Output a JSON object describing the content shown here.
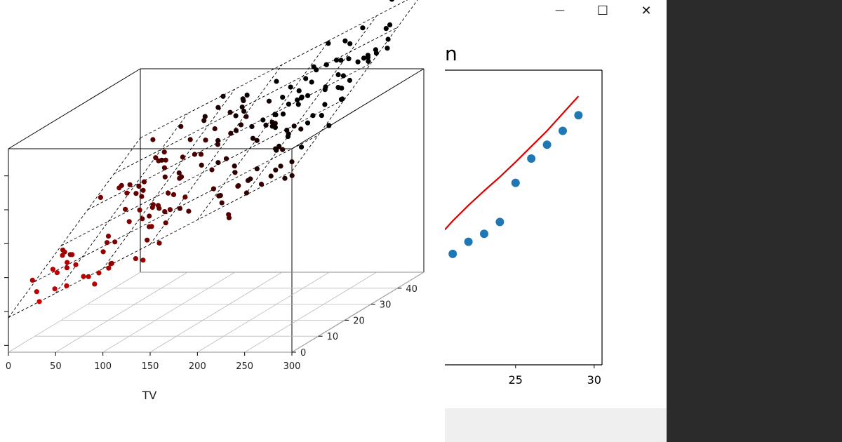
{
  "window": {
    "minimize_glyph": "—",
    "maximize_glyph": "☐",
    "close_glyph": "✕"
  },
  "right_panel": {
    "title_fragment": "n"
  },
  "chart_data": [
    {
      "type": "scatter3d",
      "title": "",
      "xlabel": "TV",
      "ylabel": "",
      "zlabel": "",
      "x_ticks": [
        "0",
        "50",
        "100",
        "150",
        "200",
        "250",
        "300"
      ],
      "y_ticks": [
        "0",
        "10",
        "20",
        "30",
        "40"
      ],
      "z_ticks_count": 6,
      "xlim": [
        0,
        300
      ],
      "ylim": [
        0,
        50
      ],
      "fit": "regression plane (dashed wireframe)",
      "point_color_scale": [
        "#ff0000",
        "#000000"
      ],
      "n_points": 190
    },
    {
      "type": "scatter",
      "title": "",
      "x_ticks": [
        "25",
        "30"
      ],
      "xlim": [
        20.5,
        30.5
      ],
      "x": [
        21,
        22,
        23,
        24,
        25,
        26,
        27,
        28,
        29
      ],
      "y": [
        3.2,
        3.55,
        3.78,
        4.12,
        5.25,
        5.95,
        6.35,
        6.75,
        7.2
      ],
      "ylim": [
        0,
        8.5
      ],
      "fit_line": {
        "x": [
          20.5,
          21,
          22,
          23,
          24,
          25,
          26,
          27,
          28,
          29
        ],
        "y": [
          3.9,
          4.15,
          4.6,
          5.02,
          5.42,
          5.85,
          6.3,
          6.75,
          7.25,
          7.75
        ],
        "color": "#dd0000"
      },
      "marker_color": "#1f77b4"
    }
  ],
  "colors": {
    "dark_bg": "#2b2b2b",
    "circle": "#666666",
    "footer": "#efefef"
  }
}
